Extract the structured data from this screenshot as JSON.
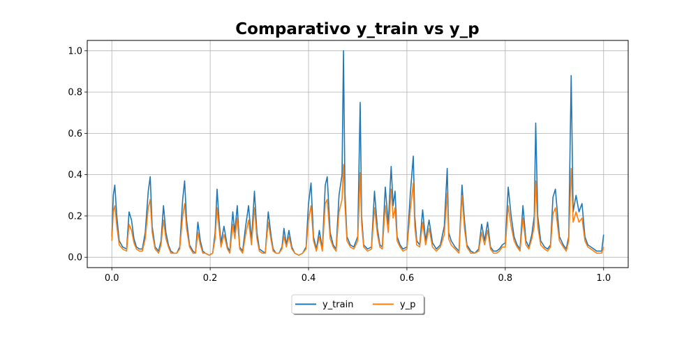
{
  "chart_data": {
    "type": "line",
    "title": "Comparativo y_train vs y_p",
    "xlabel": "",
    "ylabel": "",
    "xlim": [
      -0.05,
      1.05
    ],
    "ylim": [
      -0.05,
      1.05
    ],
    "xticks": [
      0.0,
      0.2,
      0.4,
      0.6,
      0.8,
      1.0
    ],
    "xtick_labels": [
      "0.0",
      "0.2",
      "0.4",
      "0.6",
      "0.8",
      "1.0"
    ],
    "yticks": [
      0.0,
      0.2,
      0.4,
      0.6,
      0.8,
      1.0
    ],
    "ytick_labels": [
      "0.0",
      "0.2",
      "0.4",
      "0.6",
      "0.8",
      "1.0"
    ],
    "grid": true,
    "legend_position": "bottom-center",
    "series": [
      {
        "name": "y_train",
        "color": "#1f77b4",
        "x": [
          0.0,
          0.003,
          0.006,
          0.01,
          0.015,
          0.022,
          0.03,
          0.035,
          0.04,
          0.045,
          0.05,
          0.056,
          0.062,
          0.068,
          0.074,
          0.078,
          0.082,
          0.088,
          0.095,
          0.1,
          0.105,
          0.11,
          0.115,
          0.12,
          0.126,
          0.132,
          0.138,
          0.144,
          0.148,
          0.152,
          0.158,
          0.165,
          0.17,
          0.175,
          0.18,
          0.185,
          0.19,
          0.198,
          0.205,
          0.21,
          0.214,
          0.218,
          0.222,
          0.228,
          0.235,
          0.24,
          0.246,
          0.25,
          0.255,
          0.26,
          0.266,
          0.272,
          0.278,
          0.284,
          0.29,
          0.295,
          0.3,
          0.306,
          0.312,
          0.318,
          0.324,
          0.328,
          0.334,
          0.34,
          0.346,
          0.35,
          0.355,
          0.36,
          0.366,
          0.372,
          0.38,
          0.388,
          0.395,
          0.4,
          0.405,
          0.41,
          0.416,
          0.422,
          0.428,
          0.434,
          0.438,
          0.444,
          0.45,
          0.456,
          0.462,
          0.468,
          0.471,
          0.474,
          0.478,
          0.485,
          0.492,
          0.5,
          0.505,
          0.508,
          0.512,
          0.52,
          0.528,
          0.534,
          0.54,
          0.545,
          0.55,
          0.556,
          0.562,
          0.568,
          0.572,
          0.576,
          0.58,
          0.586,
          0.592,
          0.6,
          0.607,
          0.613,
          0.616,
          0.62,
          0.626,
          0.632,
          0.638,
          0.645,
          0.652,
          0.66,
          0.668,
          0.676,
          0.682,
          0.685,
          0.69,
          0.698,
          0.706,
          0.712,
          0.717,
          0.722,
          0.73,
          0.738,
          0.746,
          0.752,
          0.758,
          0.764,
          0.77,
          0.776,
          0.782,
          0.788,
          0.794,
          0.8,
          0.806,
          0.812,
          0.818,
          0.824,
          0.83,
          0.836,
          0.842,
          0.848,
          0.854,
          0.859,
          0.862,
          0.866,
          0.872,
          0.88,
          0.886,
          0.892,
          0.897,
          0.902,
          0.91,
          0.918,
          0.924,
          0.929,
          0.934,
          0.938,
          0.944,
          0.95,
          0.956,
          0.962,
          0.968,
          0.974,
          0.98,
          0.986,
          0.992,
          0.996,
          1.0
        ],
        "y": [
          0.1,
          0.3,
          0.35,
          0.2,
          0.08,
          0.05,
          0.04,
          0.22,
          0.18,
          0.09,
          0.05,
          0.04,
          0.04,
          0.12,
          0.32,
          0.39,
          0.15,
          0.05,
          0.03,
          0.08,
          0.25,
          0.12,
          0.06,
          0.03,
          0.02,
          0.02,
          0.05,
          0.28,
          0.37,
          0.18,
          0.06,
          0.03,
          0.02,
          0.17,
          0.08,
          0.03,
          0.02,
          0.01,
          0.02,
          0.12,
          0.33,
          0.18,
          0.07,
          0.15,
          0.05,
          0.03,
          0.22,
          0.12,
          0.25,
          0.05,
          0.03,
          0.15,
          0.25,
          0.08,
          0.32,
          0.12,
          0.04,
          0.03,
          0.02,
          0.22,
          0.1,
          0.04,
          0.02,
          0.02,
          0.05,
          0.14,
          0.06,
          0.13,
          0.05,
          0.02,
          0.01,
          0.02,
          0.05,
          0.26,
          0.36,
          0.1,
          0.04,
          0.13,
          0.04,
          0.35,
          0.39,
          0.12,
          0.06,
          0.04,
          0.3,
          0.4,
          1.0,
          0.32,
          0.1,
          0.06,
          0.05,
          0.1,
          0.75,
          0.2,
          0.06,
          0.04,
          0.05,
          0.32,
          0.14,
          0.06,
          0.05,
          0.34,
          0.16,
          0.44,
          0.25,
          0.32,
          0.1,
          0.06,
          0.04,
          0.05,
          0.31,
          0.49,
          0.2,
          0.08,
          0.06,
          0.23,
          0.08,
          0.18,
          0.07,
          0.04,
          0.06,
          0.15,
          0.43,
          0.12,
          0.08,
          0.05,
          0.03,
          0.35,
          0.18,
          0.06,
          0.03,
          0.02,
          0.04,
          0.16,
          0.08,
          0.17,
          0.05,
          0.03,
          0.03,
          0.04,
          0.06,
          0.07,
          0.34,
          0.2,
          0.1,
          0.06,
          0.04,
          0.25,
          0.08,
          0.05,
          0.11,
          0.2,
          0.65,
          0.2,
          0.08,
          0.05,
          0.04,
          0.06,
          0.29,
          0.33,
          0.1,
          0.06,
          0.04,
          0.1,
          0.88,
          0.22,
          0.3,
          0.22,
          0.26,
          0.1,
          0.06,
          0.05,
          0.04,
          0.03,
          0.03,
          0.03,
          0.11
        ]
      },
      {
        "name": "y_p",
        "color": "#ff7f0e",
        "x": [
          0.0,
          0.003,
          0.006,
          0.01,
          0.015,
          0.022,
          0.03,
          0.035,
          0.04,
          0.045,
          0.05,
          0.056,
          0.062,
          0.068,
          0.074,
          0.078,
          0.082,
          0.088,
          0.095,
          0.1,
          0.105,
          0.11,
          0.115,
          0.12,
          0.126,
          0.132,
          0.138,
          0.144,
          0.148,
          0.152,
          0.158,
          0.165,
          0.17,
          0.175,
          0.18,
          0.185,
          0.19,
          0.198,
          0.205,
          0.21,
          0.214,
          0.218,
          0.222,
          0.228,
          0.235,
          0.24,
          0.246,
          0.25,
          0.255,
          0.26,
          0.266,
          0.272,
          0.278,
          0.284,
          0.29,
          0.295,
          0.3,
          0.306,
          0.312,
          0.318,
          0.324,
          0.328,
          0.334,
          0.34,
          0.346,
          0.35,
          0.355,
          0.36,
          0.366,
          0.372,
          0.38,
          0.388,
          0.395,
          0.4,
          0.405,
          0.41,
          0.416,
          0.422,
          0.428,
          0.434,
          0.438,
          0.444,
          0.45,
          0.456,
          0.462,
          0.468,
          0.471,
          0.474,
          0.478,
          0.485,
          0.492,
          0.5,
          0.505,
          0.508,
          0.512,
          0.52,
          0.528,
          0.534,
          0.54,
          0.545,
          0.55,
          0.556,
          0.562,
          0.568,
          0.572,
          0.576,
          0.58,
          0.586,
          0.592,
          0.6,
          0.607,
          0.613,
          0.616,
          0.62,
          0.626,
          0.632,
          0.638,
          0.645,
          0.652,
          0.66,
          0.668,
          0.676,
          0.682,
          0.685,
          0.69,
          0.698,
          0.706,
          0.712,
          0.717,
          0.722,
          0.73,
          0.738,
          0.746,
          0.752,
          0.758,
          0.764,
          0.77,
          0.776,
          0.782,
          0.788,
          0.794,
          0.8,
          0.806,
          0.812,
          0.818,
          0.824,
          0.83,
          0.836,
          0.842,
          0.848,
          0.854,
          0.859,
          0.862,
          0.866,
          0.872,
          0.88,
          0.886,
          0.892,
          0.897,
          0.902,
          0.91,
          0.918,
          0.924,
          0.929,
          0.934,
          0.938,
          0.944,
          0.95,
          0.956,
          0.962,
          0.968,
          0.974,
          0.98,
          0.986,
          0.992,
          0.996,
          1.0
        ],
        "y": [
          0.08,
          0.22,
          0.25,
          0.15,
          0.06,
          0.04,
          0.03,
          0.16,
          0.13,
          0.07,
          0.04,
          0.03,
          0.03,
          0.09,
          0.24,
          0.28,
          0.12,
          0.04,
          0.02,
          0.06,
          0.18,
          0.09,
          0.05,
          0.02,
          0.02,
          0.02,
          0.04,
          0.2,
          0.26,
          0.14,
          0.05,
          0.02,
          0.02,
          0.12,
          0.06,
          0.02,
          0.02,
          0.01,
          0.02,
          0.09,
          0.24,
          0.14,
          0.05,
          0.11,
          0.04,
          0.02,
          0.16,
          0.09,
          0.19,
          0.04,
          0.02,
          0.11,
          0.18,
          0.06,
          0.24,
          0.09,
          0.03,
          0.02,
          0.02,
          0.17,
          0.08,
          0.03,
          0.02,
          0.02,
          0.04,
          0.1,
          0.05,
          0.1,
          0.04,
          0.02,
          0.01,
          0.02,
          0.04,
          0.18,
          0.25,
          0.08,
          0.03,
          0.1,
          0.03,
          0.26,
          0.28,
          0.09,
          0.05,
          0.03,
          0.22,
          0.28,
          0.45,
          0.25,
          0.08,
          0.05,
          0.04,
          0.08,
          0.41,
          0.16,
          0.05,
          0.03,
          0.04,
          0.24,
          0.11,
          0.05,
          0.04,
          0.25,
          0.12,
          0.33,
          0.19,
          0.24,
          0.08,
          0.05,
          0.03,
          0.04,
          0.23,
          0.36,
          0.15,
          0.06,
          0.05,
          0.17,
          0.06,
          0.14,
          0.05,
          0.03,
          0.05,
          0.11,
          0.31,
          0.09,
          0.06,
          0.04,
          0.02,
          0.3,
          0.14,
          0.05,
          0.02,
          0.02,
          0.03,
          0.12,
          0.06,
          0.13,
          0.04,
          0.02,
          0.02,
          0.03,
          0.05,
          0.05,
          0.25,
          0.15,
          0.08,
          0.05,
          0.03,
          0.19,
          0.06,
          0.04,
          0.09,
          0.15,
          0.37,
          0.15,
          0.06,
          0.04,
          0.03,
          0.05,
          0.21,
          0.24,
          0.08,
          0.05,
          0.03,
          0.08,
          0.43,
          0.17,
          0.22,
          0.17,
          0.19,
          0.08,
          0.05,
          0.04,
          0.03,
          0.02,
          0.02,
          0.02,
          0.05
        ]
      }
    ]
  }
}
